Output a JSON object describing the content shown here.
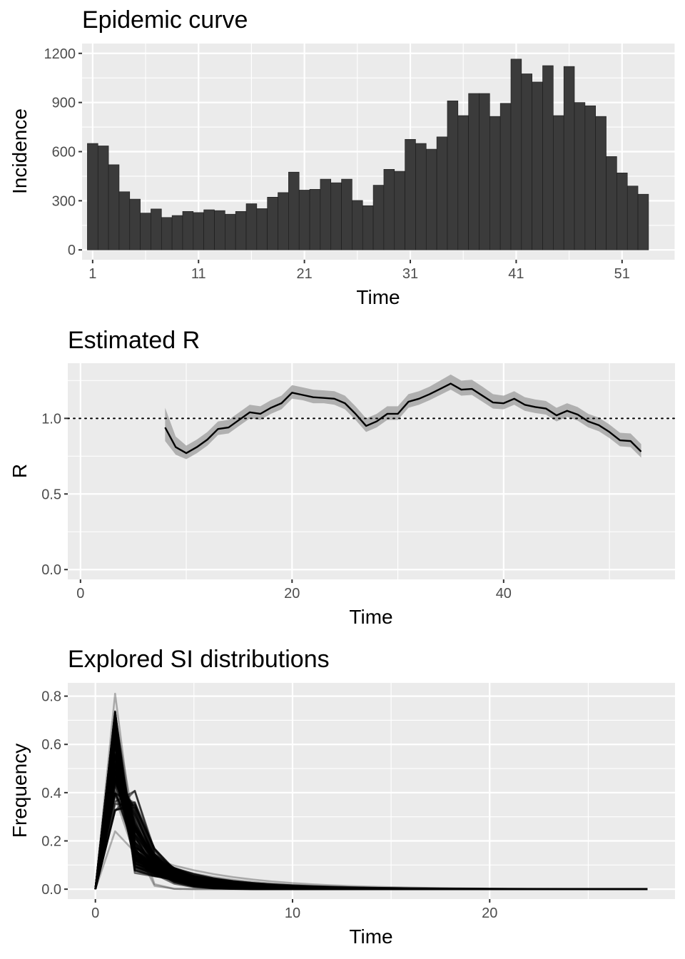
{
  "chart_data": [
    {
      "type": "bar",
      "title": "Epidemic curve",
      "xlabel": "Time",
      "ylabel": "Incidence",
      "x": [
        1,
        2,
        3,
        4,
        5,
        6,
        7,
        8,
        9,
        10,
        11,
        12,
        13,
        14,
        15,
        16,
        17,
        18,
        19,
        20,
        21,
        22,
        23,
        24,
        25,
        26,
        27,
        28,
        29,
        30,
        31,
        32,
        33,
        34,
        35,
        36,
        37,
        38,
        39,
        40,
        41,
        42,
        43,
        44,
        45,
        46,
        47,
        48,
        49,
        50,
        51,
        52,
        53
      ],
      "values": [
        650,
        635,
        520,
        355,
        310,
        225,
        250,
        198,
        210,
        235,
        228,
        245,
        240,
        218,
        235,
        282,
        252,
        322,
        350,
        475,
        365,
        370,
        432,
        410,
        432,
        302,
        270,
        395,
        492,
        480,
        675,
        650,
        615,
        690,
        910,
        820,
        955,
        955,
        815,
        895,
        1165,
        1075,
        1025,
        1125,
        820,
        1120,
        900,
        880,
        815,
        570,
        470,
        390,
        340
      ],
      "xlim": [
        0,
        56
      ],
      "ylim": [
        -60,
        1260
      ],
      "xticks": [
        1,
        11,
        21,
        31,
        41,
        51
      ],
      "xtick_labels": [
        "1",
        "11",
        "21",
        "31",
        "41",
        "51"
      ],
      "yticks": [
        0,
        300,
        600,
        900,
        1200
      ],
      "ytick_labels": [
        "0",
        "300",
        "600",
        "900",
        "1200"
      ],
      "grid": true,
      "colors": {
        "bar": "#3b3b3b",
        "panel": "#ebebeb",
        "grid": "#ffffff"
      }
    },
    {
      "type": "line",
      "title": "Estimated R",
      "xlabel": "Time",
      "ylabel": "R",
      "x": [
        8,
        9,
        10,
        11,
        12,
        13,
        14,
        15,
        16,
        17,
        18,
        19,
        20,
        21,
        22,
        23,
        24,
        25,
        26,
        27,
        28,
        29,
        30,
        31,
        32,
        33,
        34,
        35,
        36,
        37,
        38,
        39,
        40,
        41,
        42,
        43,
        44,
        45,
        46,
        47,
        48,
        49,
        50,
        51,
        52,
        53
      ],
      "mean": [
        0.94,
        0.81,
        0.77,
        0.81,
        0.86,
        0.93,
        0.94,
        0.99,
        1.04,
        1.03,
        1.07,
        1.1,
        1.17,
        1.155,
        1.14,
        1.135,
        1.13,
        1.1,
        1.03,
        0.95,
        0.98,
        1.03,
        1.03,
        1.11,
        1.13,
        1.16,
        1.195,
        1.23,
        1.19,
        1.195,
        1.15,
        1.105,
        1.1,
        1.13,
        1.09,
        1.075,
        1.065,
        1.02,
        1.05,
        1.025,
        0.98,
        0.955,
        0.91,
        0.855,
        0.85,
        0.78
      ],
      "lower": [
        0.85,
        0.76,
        0.73,
        0.77,
        0.82,
        0.89,
        0.9,
        0.95,
        1.0,
        0.99,
        1.03,
        1.06,
        1.13,
        1.12,
        1.1,
        1.1,
        1.09,
        1.06,
        0.99,
        0.91,
        0.94,
        0.99,
        0.99,
        1.07,
        1.09,
        1.12,
        1.155,
        1.19,
        1.15,
        1.155,
        1.11,
        1.065,
        1.06,
        1.09,
        1.05,
        1.035,
        1.025,
        0.98,
        1.01,
        0.985,
        0.94,
        0.915,
        0.87,
        0.815,
        0.81,
        0.74
      ],
      "upper": [
        1.07,
        0.88,
        0.82,
        0.86,
        0.91,
        0.98,
        0.99,
        1.04,
        1.09,
        1.08,
        1.12,
        1.15,
        1.22,
        1.205,
        1.19,
        1.185,
        1.18,
        1.15,
        1.08,
        1.0,
        1.03,
        1.08,
        1.08,
        1.16,
        1.18,
        1.21,
        1.25,
        1.29,
        1.25,
        1.255,
        1.21,
        1.16,
        1.15,
        1.18,
        1.14,
        1.125,
        1.115,
        1.07,
        1.1,
        1.075,
        1.03,
        1.005,
        0.96,
        0.905,
        0.9,
        0.83
      ],
      "reference_line": 1.0,
      "xlim": [
        -1.2,
        56.2
      ],
      "ylim": [
        -0.065,
        1.365
      ],
      "xticks": [
        0,
        20,
        40
      ],
      "xtick_labels": [
        "0",
        "20",
        "40"
      ],
      "yticks": [
        0.0,
        0.5,
        1.0
      ],
      "ytick_labels": [
        "0.0",
        "0.5",
        "1.0"
      ],
      "grid": true,
      "colors": {
        "line": "#000000",
        "ribbon": "#a6a6a6",
        "panel": "#ebebeb",
        "grid": "#ffffff"
      }
    },
    {
      "type": "line",
      "title": "Explored SI distributions",
      "xlabel": "Time",
      "ylabel": "Frequency",
      "x_range": [
        0,
        28
      ],
      "series_count": 120,
      "peak_at": 1,
      "peak_range": [
        0.24,
        0.81
      ],
      "xlim": [
        -1.4,
        29.4
      ],
      "ylim": [
        -0.041,
        0.855
      ],
      "xticks": [
        0,
        10,
        20
      ],
      "xtick_labels": [
        "0",
        "10",
        "20"
      ],
      "yticks": [
        0.0,
        0.2,
        0.4,
        0.6,
        0.8
      ],
      "ytick_labels": [
        "0.0",
        "0.2",
        "0.4",
        "0.6",
        "0.8"
      ],
      "grid": true,
      "colors": {
        "line": "#000000",
        "panel": "#ebebeb",
        "grid": "#ffffff"
      }
    }
  ]
}
